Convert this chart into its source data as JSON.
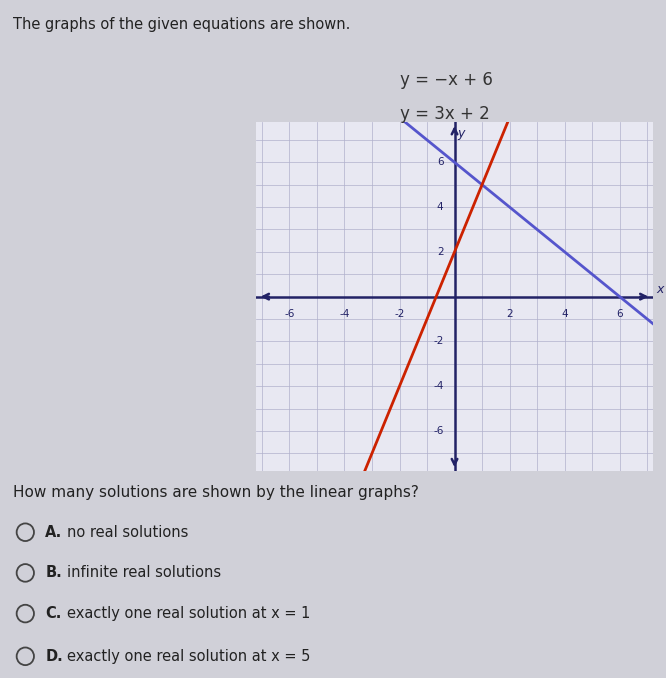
{
  "title_text": "The graphs of the given equations are shown.",
  "eq1_label": "y = −x + 6",
  "eq2_label": "y = 3x + 2",
  "eq1_color": "#5555cc",
  "eq2_color": "#cc2200",
  "xlim": [
    -7.2,
    7.2
  ],
  "ylim": [
    -7.8,
    7.8
  ],
  "xticks": [
    -6,
    -4,
    -2,
    2,
    4,
    6
  ],
  "yticks": [
    -6,
    -4,
    -2,
    2,
    4,
    6
  ],
  "grid_color": "#b0b0cc",
  "axis_color": "#222266",
  "bg_color": "#e8e8f2",
  "question_text": "How many solutions are shown by the linear graphs?",
  "options": [
    [
      "A.",
      "no real solutions"
    ],
    [
      "B.",
      "infinite real solutions"
    ],
    [
      "C.",
      "exactly one real solution at x = 1"
    ],
    [
      "D.",
      "exactly one real solution at x = 5"
    ]
  ],
  "background_page": "#d0d0d8"
}
